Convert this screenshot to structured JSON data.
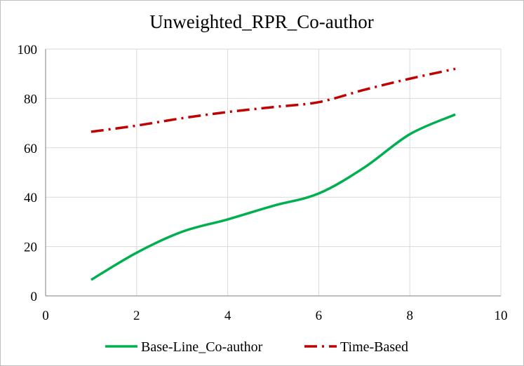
{
  "chart_data": {
    "type": "line",
    "title": "Unweighted_RPR_Co-author",
    "xlabel": "",
    "ylabel": "",
    "xlim": [
      0,
      10
    ],
    "ylim": [
      0,
      100
    ],
    "x_ticks": [
      "0",
      "2",
      "4",
      "6",
      "8",
      "10"
    ],
    "y_ticks": [
      "0",
      "20",
      "40",
      "60",
      "80",
      "100"
    ],
    "grid": true,
    "smooth": true,
    "legend_position": "bottom",
    "series": [
      {
        "name": "Base-Line_Co-author",
        "color": "#00b050",
        "line_style": "solid",
        "x": [
          1,
          2,
          3,
          4,
          5,
          6,
          7,
          8,
          9
        ],
        "y": [
          6.5,
          17.5,
          26,
          31,
          36.5,
          41.5,
          52,
          65.5,
          73.5
        ]
      },
      {
        "name": "Time-Based",
        "color": "#c00000",
        "line_style": "dash-dot",
        "x": [
          1,
          2,
          3,
          4,
          5,
          6,
          7,
          8,
          9
        ],
        "y": [
          66.5,
          69,
          72,
          74.5,
          76.5,
          78.5,
          83.5,
          88,
          92
        ]
      }
    ]
  }
}
